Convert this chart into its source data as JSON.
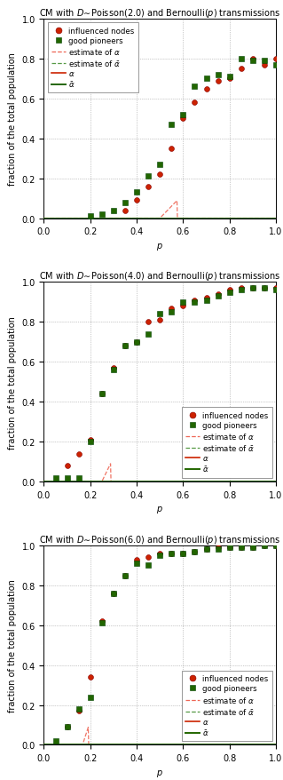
{
  "lambdas": [
    2.0,
    4.0,
    6.0
  ],
  "titles": [
    "CM with $D\\!\\sim\\!$Poisson(2.0) and Bernoulli($p$) transmissions",
    "CM with $D\\!\\sim\\!$Poisson(4.0) and Bernoulli($p$) transmissions",
    "CM with $D\\!\\sim\\!$Poisson(6.0) and Bernoulli($p$) transmissions"
  ],
  "xlabel": "$p$",
  "ylabel": "fraction of the total population",
  "xlim": [
    0.0,
    1.0
  ],
  "ylim": [
    0.0,
    1.0
  ],
  "yticks": [
    0.0,
    0.2,
    0.4,
    0.6,
    0.8,
    1.0
  ],
  "xticks": [
    0.0,
    0.2,
    0.4,
    0.6,
    0.8,
    1.0
  ],
  "color_red": "#cc2200",
  "color_green": "#226600",
  "color_red_dashed": "#ee6655",
  "color_green_dashed": "#559944",
  "scatter_size": 18,
  "legend_locs": [
    "upper left",
    "lower right",
    "lower right"
  ],
  "sim_data": {
    "lambda2": {
      "p_alpha": [
        0.35,
        0.4,
        0.45,
        0.5,
        0.55,
        0.6,
        0.65,
        0.7,
        0.75,
        0.8,
        0.85,
        0.9,
        0.95,
        1.0
      ],
      "alpha_sim": [
        0.04,
        0.09,
        0.16,
        0.22,
        0.35,
        0.5,
        0.58,
        0.65,
        0.69,
        0.7,
        0.75,
        0.8,
        0.77,
        0.8
      ],
      "p_abar": [
        0.2,
        0.25,
        0.3,
        0.35,
        0.4,
        0.45,
        0.5,
        0.55,
        0.6,
        0.65,
        0.7,
        0.75,
        0.8,
        0.85,
        0.9,
        0.95,
        1.0
      ],
      "abar_sim": [
        0.01,
        0.02,
        0.04,
        0.08,
        0.13,
        0.21,
        0.27,
        0.47,
        0.52,
        0.66,
        0.7,
        0.72,
        0.71,
        0.8,
        0.79,
        0.79,
        0.77
      ]
    },
    "lambda4": {
      "p_alpha": [
        0.1,
        0.15,
        0.2,
        0.25,
        0.3,
        0.35,
        0.4,
        0.45,
        0.5,
        0.55,
        0.6,
        0.65,
        0.7,
        0.75,
        0.8,
        0.85,
        0.9,
        0.95,
        1.0
      ],
      "alpha_sim": [
        0.08,
        0.14,
        0.21,
        0.44,
        0.57,
        0.68,
        0.7,
        0.8,
        0.81,
        0.87,
        0.88,
        0.91,
        0.92,
        0.94,
        0.96,
        0.97,
        0.97,
        0.97,
        0.97
      ],
      "p_abar": [
        0.05,
        0.1,
        0.15,
        0.2,
        0.25,
        0.3,
        0.35,
        0.4,
        0.45,
        0.5,
        0.55,
        0.6,
        0.65,
        0.7,
        0.75,
        0.8,
        0.85,
        0.9,
        0.95,
        1.0
      ],
      "abar_sim": [
        0.02,
        0.02,
        0.02,
        0.2,
        0.44,
        0.56,
        0.68,
        0.7,
        0.74,
        0.84,
        0.85,
        0.9,
        0.9,
        0.91,
        0.93,
        0.95,
        0.96,
        0.97,
        0.97,
        0.96
      ]
    },
    "lambda6": {
      "p_alpha": [
        0.1,
        0.15,
        0.2,
        0.25,
        0.3,
        0.35,
        0.4,
        0.45,
        0.5,
        0.55,
        0.6,
        0.65,
        0.7,
        0.75,
        0.8,
        0.85,
        0.9,
        0.95,
        1.0
      ],
      "alpha_sim": [
        0.09,
        0.17,
        0.34,
        0.62,
        0.76,
        0.85,
        0.93,
        0.94,
        0.96,
        0.96,
        0.96,
        0.97,
        0.98,
        0.99,
        0.99,
        0.99,
        0.99,
        1.0,
        1.0
      ],
      "p_abar": [
        0.05,
        0.1,
        0.15,
        0.2,
        0.25,
        0.3,
        0.35,
        0.4,
        0.45,
        0.5,
        0.55,
        0.6,
        0.65,
        0.7,
        0.75,
        0.8,
        0.85,
        0.9,
        0.95,
        1.0
      ],
      "abar_sim": [
        0.02,
        0.09,
        0.18,
        0.24,
        0.61,
        0.76,
        0.85,
        0.91,
        0.9,
        0.95,
        0.96,
        0.96,
        0.97,
        0.98,
        0.98,
        0.99,
        0.99,
        0.99,
        1.0,
        1.0
      ]
    }
  }
}
